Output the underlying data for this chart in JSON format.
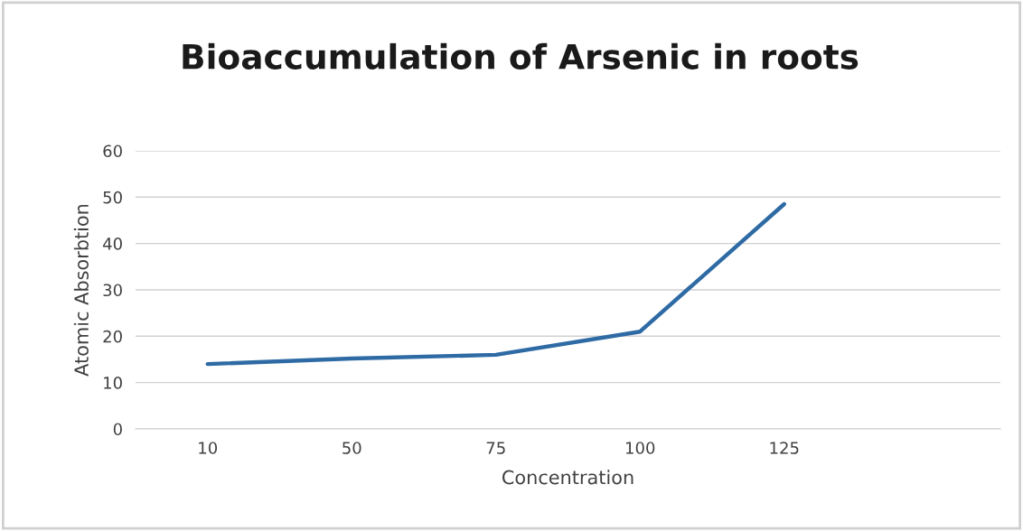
{
  "chart_data": {
    "type": "line",
    "title": "Bioaccumulation of Arsenic in roots",
    "xlabel": "Concentration",
    "ylabel": "Atomic Absorbtion",
    "categories": [
      "10",
      "50",
      "75",
      "100",
      "125",
      null
    ],
    "series": [
      {
        "color": "#2e6aa4",
        "values": [
          14,
          15.2,
          16,
          21,
          48.5,
          null
        ]
      }
    ],
    "ylim": [
      0,
      60
    ],
    "yticks": [
      0,
      10,
      20,
      30,
      40,
      50,
      60
    ],
    "grid": "y",
    "legend": false,
    "marker": "none",
    "line_style": "solid"
  }
}
